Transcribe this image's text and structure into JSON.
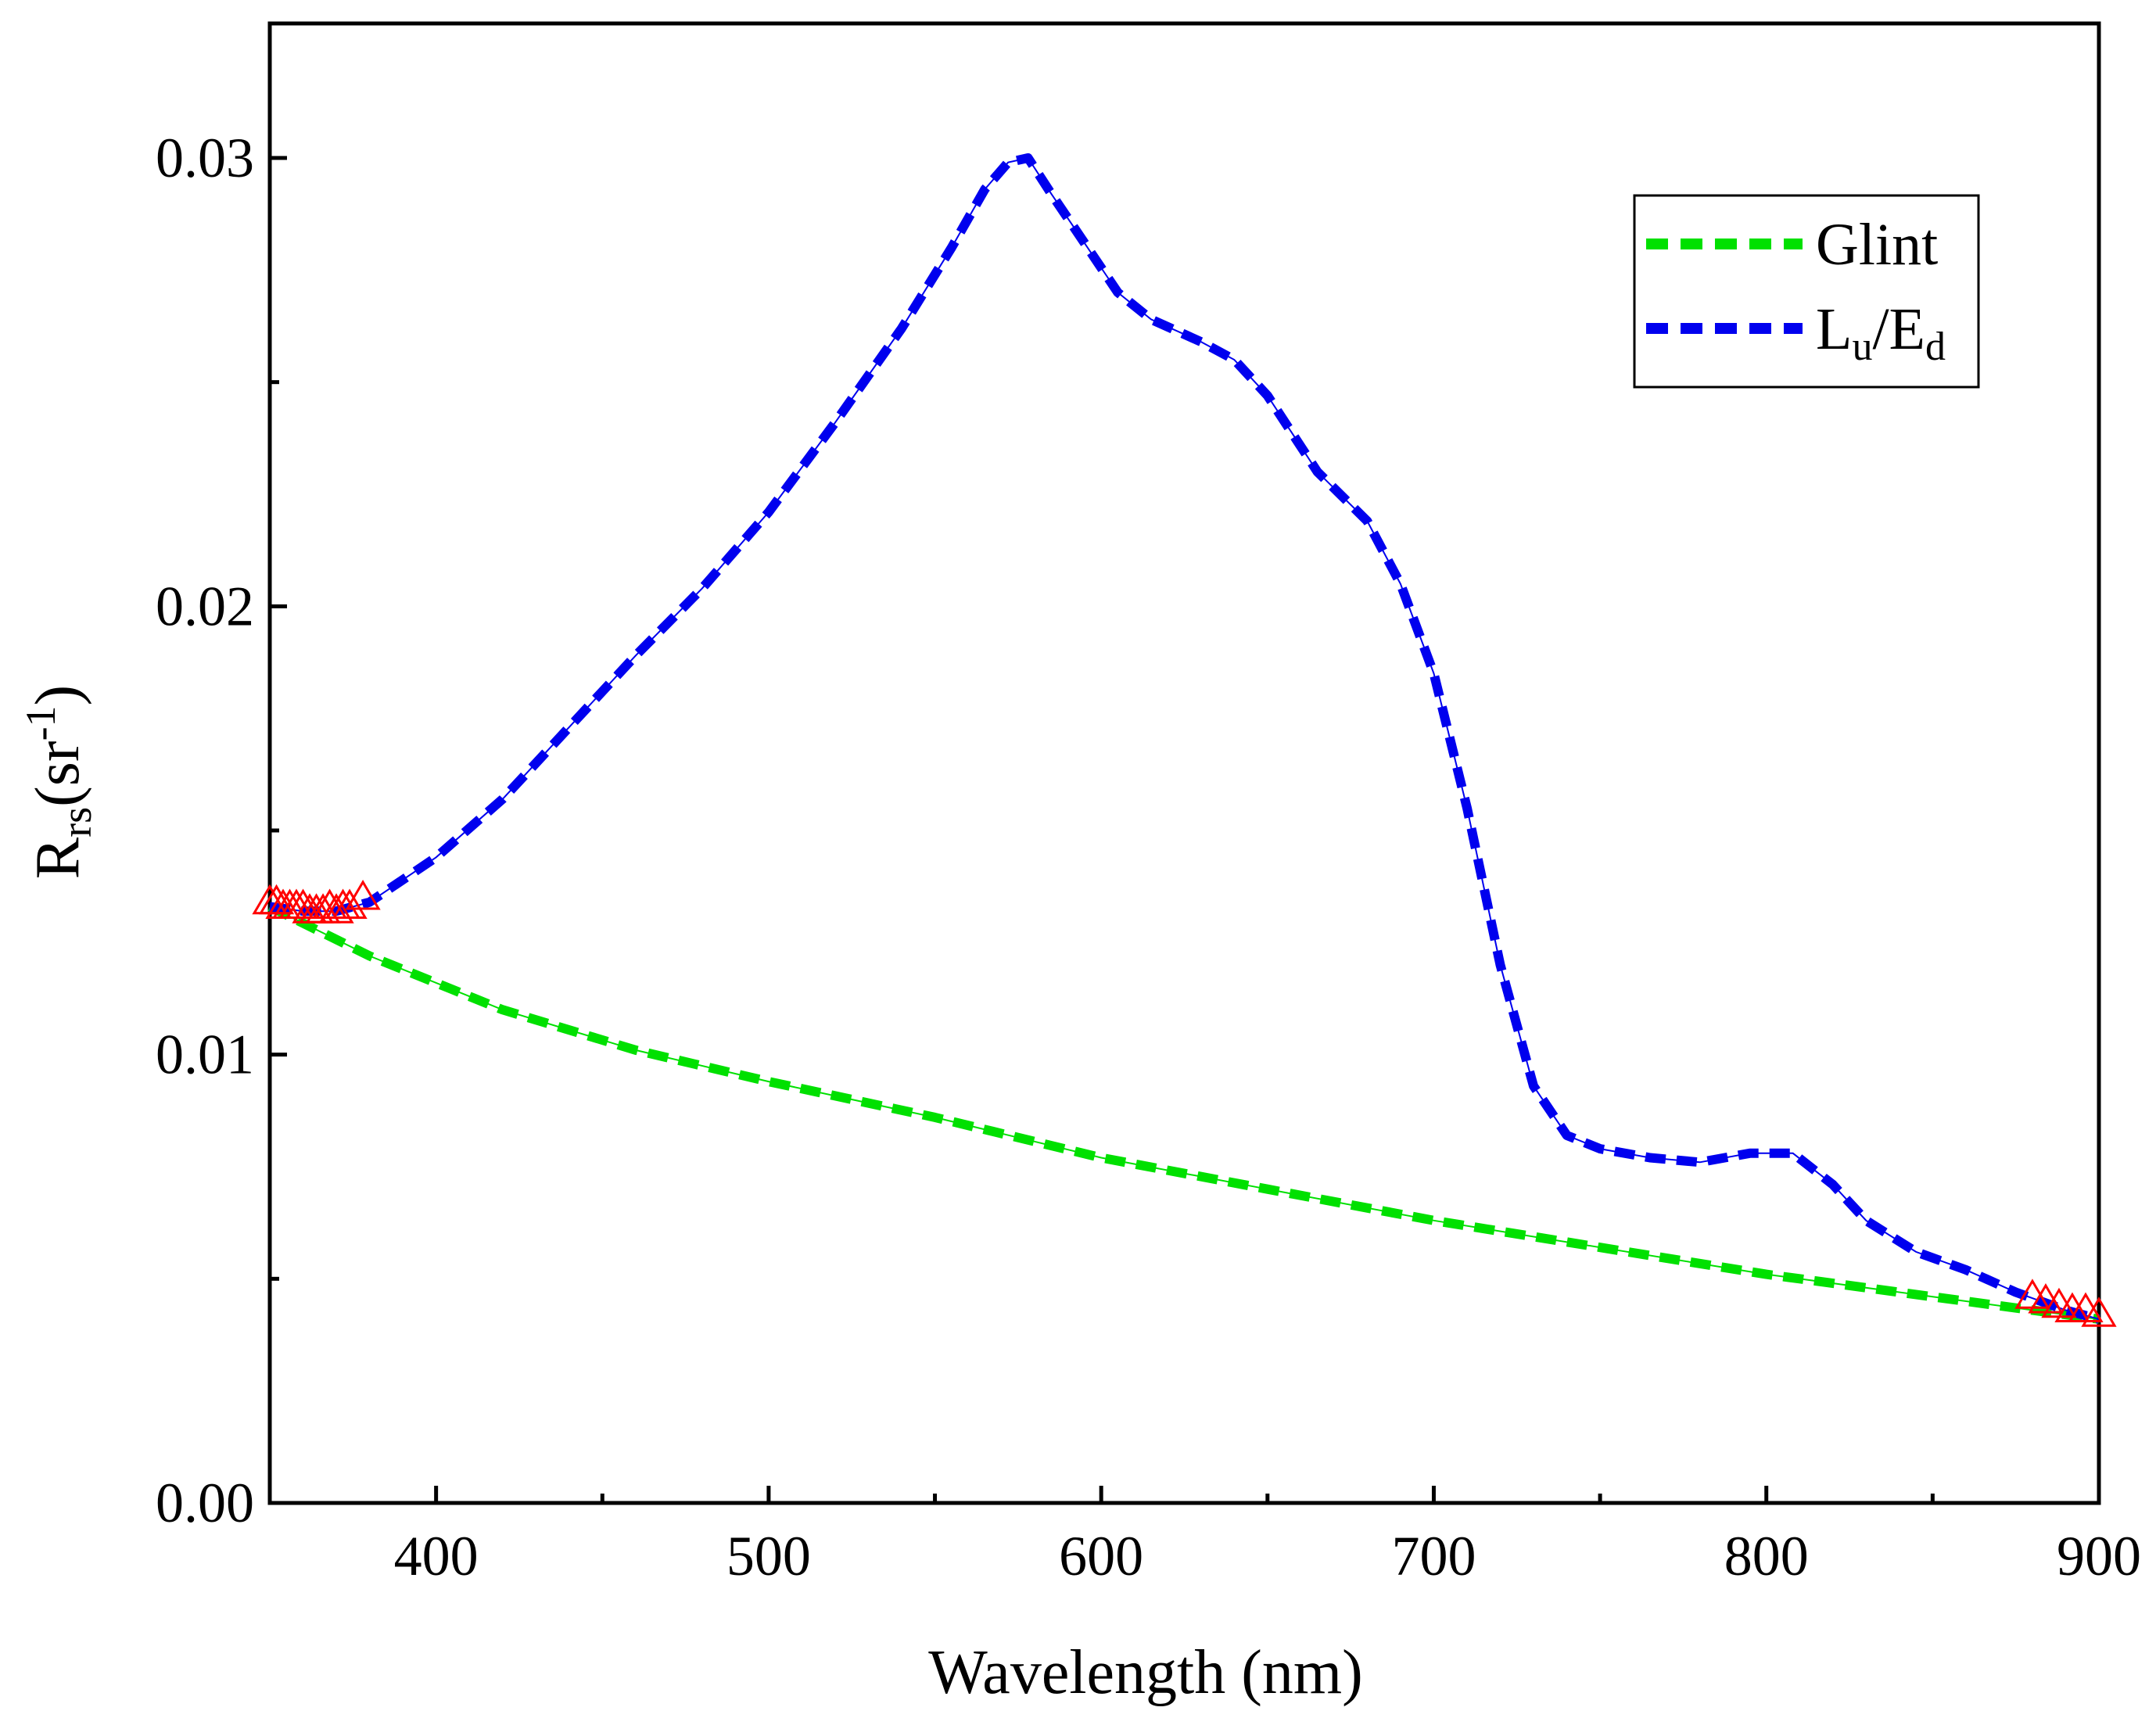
{
  "chart_data": {
    "type": "line",
    "title": "",
    "xlabel": "Wavelength (nm)",
    "ylabel": {
      "base": "R",
      "sub": "rs",
      "unit_open": "(sr",
      "sup": "-1",
      "unit_close": ")"
    },
    "xlim": [
      350,
      900
    ],
    "ylim": [
      0,
      0.033
    ],
    "x_ticks": [
      400,
      500,
      600,
      700,
      800,
      900
    ],
    "x_tick_labels": [
      "400",
      "500",
      "600",
      "700",
      "800",
      "900"
    ],
    "x_minor_ticks": [
      450,
      550,
      650,
      750,
      850
    ],
    "y_ticks": [
      0,
      0.01,
      0.02,
      0.03
    ],
    "y_tick_labels": [
      "0.00",
      "0.01",
      "0.02",
      "0.03"
    ],
    "y_minor_ticks": [
      0.005,
      0.015,
      0.025
    ],
    "grid": false,
    "legend_position": "top-right",
    "series": [
      {
        "name": "Glint",
        "color": "#00e000",
        "style": "dashed",
        "x": [
          350,
          380,
          420,
          460,
          500,
          550,
          600,
          650,
          700,
          750,
          800,
          850,
          900
        ],
        "y": [
          0.0133,
          0.0122,
          0.011,
          0.0101,
          0.0094,
          0.0086,
          0.0077,
          0.007,
          0.0063,
          0.0057,
          0.0051,
          0.0046,
          0.0041
        ]
      },
      {
        "name": "Lu/Ed",
        "label": {
          "main1": "L",
          "sub1": "u",
          "slash": "/E",
          "sub2": "d"
        },
        "color": "#0000ee",
        "style": "dashed",
        "x": [
          350,
          360,
          370,
          380,
          400,
          420,
          440,
          460,
          480,
          500,
          520,
          540,
          555,
          565,
          572,
          578,
          585,
          595,
          605,
          615,
          630,
          640,
          650,
          665,
          680,
          690,
          700,
          710,
          720,
          730,
          740,
          750,
          765,
          780,
          795,
          808,
          820,
          830,
          845,
          860,
          875,
          890,
          900
        ],
        "y": [
          0.0133,
          0.0132,
          0.0132,
          0.0134,
          0.0144,
          0.0157,
          0.0173,
          0.0189,
          0.0204,
          0.0221,
          0.0241,
          0.0262,
          0.028,
          0.0293,
          0.0299,
          0.03,
          0.0292,
          0.0281,
          0.027,
          0.0264,
          0.0259,
          0.0255,
          0.0247,
          0.023,
          0.0219,
          0.0205,
          0.0185,
          0.0155,
          0.012,
          0.0093,
          0.0082,
          0.0079,
          0.0077,
          0.0076,
          0.0078,
          0.0078,
          0.0071,
          0.0063,
          0.0056,
          0.0052,
          0.0047,
          0.0043,
          0.0041
        ]
      }
    ],
    "markers": {
      "symbol": "open-triangle",
      "color": "#ff0000",
      "x": [
        350,
        352,
        354,
        356,
        358,
        360,
        362,
        364,
        366,
        368,
        370,
        372,
        374,
        378,
        880,
        884,
        888,
        892,
        896,
        900
      ],
      "y": [
        0.0134,
        0.0134,
        0.0133,
        0.0133,
        0.0133,
        0.0133,
        0.0132,
        0.0132,
        0.0132,
        0.0133,
        0.0132,
        0.0133,
        0.0133,
        0.0135,
        0.0046,
        0.0045,
        0.0044,
        0.0043,
        0.0043,
        0.0042
      ]
    }
  }
}
